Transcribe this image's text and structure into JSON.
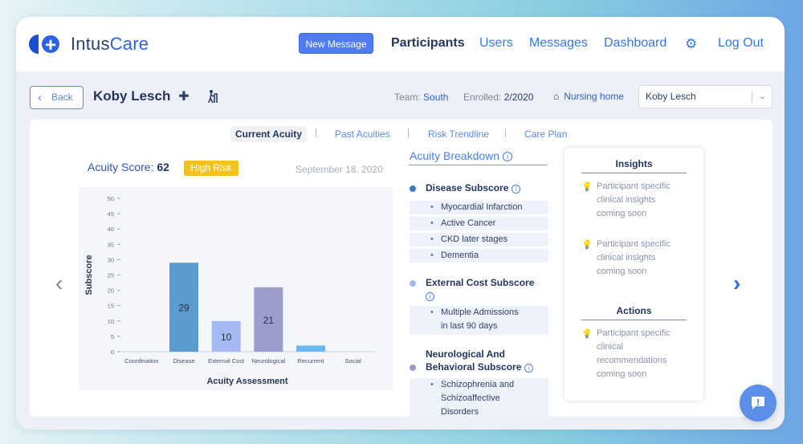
{
  "app": {
    "logo_prefix": "Intus",
    "logo_suffix": "Care",
    "new_message_label": "New Message",
    "nav": [
      {
        "label": "Participants"
      },
      {
        "label": "Users"
      },
      {
        "label": "Messages"
      },
      {
        "label": "Dashboard"
      },
      {
        "label": "Log Out"
      }
    ]
  },
  "subbar": {
    "back_label": "Back",
    "patient_name": "Koby Lesch",
    "team_label": "Team:",
    "team_value": "South",
    "enrolled_label": "Enrolled:",
    "enrolled_value": "2/2020",
    "residence": "Nursing home",
    "participant_select": "Koby Lesch"
  },
  "tabs": [
    {
      "label": "Current Acuity"
    },
    {
      "label": "Past Acuities"
    },
    {
      "label": "Risk Trendline"
    },
    {
      "label": "Care Plan"
    }
  ],
  "score": {
    "label": "Acuity Score:",
    "value": "62",
    "risk": "High Risk",
    "date": "September 18, 2020"
  },
  "chart_data": {
    "type": "bar",
    "categories": [
      "Coordination",
      "Disease",
      "External Cost",
      "Neurological",
      "Recurrent",
      "Social"
    ],
    "values": [
      0,
      29,
      10,
      21,
      2,
      0
    ],
    "data_labels": [
      "",
      "29",
      "10",
      "21",
      "",
      ""
    ],
    "colors": [
      "#5b9bd0",
      "#5b9bd0",
      "#a6b9f2",
      "#9b9ccb",
      "#6fb7f0",
      "#5b9bd0"
    ],
    "ylim": [
      0,
      50
    ],
    "yticks": [
      "0",
      "5",
      "10",
      "15",
      "20",
      "25",
      "30",
      "35",
      "40",
      "45",
      "50"
    ],
    "xlabel": "Acuity Assessment",
    "ylabel": "Subscore"
  },
  "breakdown": {
    "title": "Acuity Breakdown",
    "disease": {
      "title": "Disease Subscore",
      "color": "#3a78c5",
      "items": [
        "Myocardial Infarction",
        "Active Cancer",
        "CKD later stages",
        "Dementia"
      ]
    },
    "external": {
      "title": "External Cost Subscore",
      "color": "#a6b9f2",
      "items": [
        "Multiple Admissions",
        "in last 90 days"
      ]
    },
    "neuro": {
      "title_line1": "Neurological And",
      "title_line2": "Behavioral Subscore",
      "color": "#9b9ccb",
      "items": [
        "Schizophrenia and",
        "Schizoaffective",
        "Disorders"
      ]
    }
  },
  "insights": {
    "title": "Insights",
    "items": [
      [
        "Participant specific",
        "clinical insights",
        "coming soon"
      ],
      [
        "Participant specific",
        "clinical insights",
        "coming soon"
      ]
    ],
    "actions_title": "Actions",
    "actions": [
      [
        "Participant specific",
        "clinical",
        "recommendations",
        "coming soon"
      ]
    ]
  },
  "icons": {
    "gear": "gear-icon",
    "back": "chevron-left-icon",
    "bandage": "bandage-icon",
    "walker": "walker-icon",
    "home": "home-icon",
    "info": "info-icon",
    "bulb": "lightbulb-icon",
    "chat": "chat-icon"
  }
}
